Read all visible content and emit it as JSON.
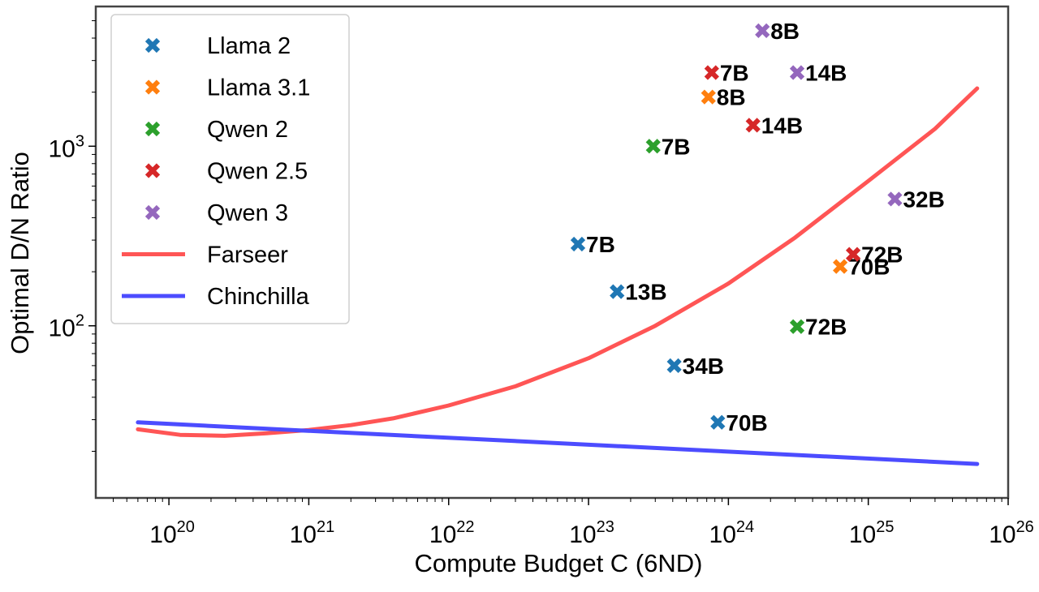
{
  "chart_data": {
    "type": "scatter",
    "xlabel": "Compute Budget C (6ND)",
    "ylabel": "Optimal D/N Ratio",
    "x_scale": "log",
    "y_scale": "log",
    "xlim": [
      3e+19,
      1e+26
    ],
    "ylim": [
      11,
      6000
    ],
    "x_ticks": [
      {
        "value": 1e+20,
        "base": "10",
        "exp": "20"
      },
      {
        "value": 1e+21,
        "base": "10",
        "exp": "21"
      },
      {
        "value": 1e+22,
        "base": "10",
        "exp": "22"
      },
      {
        "value": 1e+23,
        "base": "10",
        "exp": "23"
      },
      {
        "value": 1e+24,
        "base": "10",
        "exp": "24"
      },
      {
        "value": 1e+25,
        "base": "10",
        "exp": "25"
      },
      {
        "value": 1e+26,
        "base": "10",
        "exp": "26"
      }
    ],
    "y_ticks": [
      {
        "value": 100,
        "base": "10",
        "exp": "2"
      },
      {
        "value": 1000,
        "base": "10",
        "exp": "3"
      }
    ],
    "grid": false,
    "legend_position": "top-left",
    "scatter_series": [
      {
        "name": "Llama 2",
        "color": "#1f77b4",
        "points": [
          {
            "x": 8.4e+22,
            "y": 285,
            "label": "7B"
          },
          {
            "x": 1.6e+23,
            "y": 155,
            "label": "13B"
          },
          {
            "x": 4.1e+23,
            "y": 60,
            "label": "34B"
          },
          {
            "x": 8.4e+23,
            "y": 29,
            "label": "70B"
          }
        ]
      },
      {
        "name": "Llama 3.1",
        "color": "#ff7f0e",
        "points": [
          {
            "x": 7.2e+23,
            "y": 1880,
            "label": "8B"
          },
          {
            "x": 6.3e+24,
            "y": 214,
            "label": "70B"
          }
        ]
      },
      {
        "name": "Qwen 2",
        "color": "#2ca02c",
        "points": [
          {
            "x": 2.9e+23,
            "y": 1000,
            "label": "7B"
          },
          {
            "x": 3.1e+24,
            "y": 99,
            "label": "72B"
          }
        ]
      },
      {
        "name": "Qwen 2.5",
        "color": "#d62728",
        "points": [
          {
            "x": 7.6e+23,
            "y": 2570,
            "label": "7B"
          },
          {
            "x": 1.5e+24,
            "y": 1310,
            "label": "14B"
          },
          {
            "x": 7.8e+24,
            "y": 250,
            "label": "72B"
          }
        ]
      },
      {
        "name": "Qwen 3",
        "color": "#9467bd",
        "points": [
          {
            "x": 1.75e+24,
            "y": 4400,
            "label": "8B"
          },
          {
            "x": 3.1e+24,
            "y": 2570,
            "label": "14B"
          },
          {
            "x": 1.55e+25,
            "y": 508,
            "label": "32B"
          }
        ]
      }
    ],
    "line_series": [
      {
        "name": "Farseer",
        "color": "#ff5555",
        "points": [
          [
            6e+19,
            26.5
          ],
          [
            1.2e+20,
            24.7
          ],
          [
            2.5e+20,
            24.4
          ],
          [
            5e+20,
            25.2
          ],
          [
            1e+21,
            26.3
          ],
          [
            2e+21,
            28
          ],
          [
            4e+21,
            30.5
          ],
          [
            1e+22,
            36
          ],
          [
            3e+22,
            46
          ],
          [
            1e+23,
            66
          ],
          [
            3e+23,
            100
          ],
          [
            1e+24,
            172
          ],
          [
            3e+24,
            310
          ],
          [
            1e+25,
            640
          ],
          [
            3e+25,
            1250
          ],
          [
            6e+25,
            2100
          ]
        ]
      },
      {
        "name": "Chinchilla",
        "color": "#4c4cff",
        "points": [
          [
            6e+19,
            29
          ],
          [
            6e+25,
            17
          ]
        ]
      }
    ]
  }
}
